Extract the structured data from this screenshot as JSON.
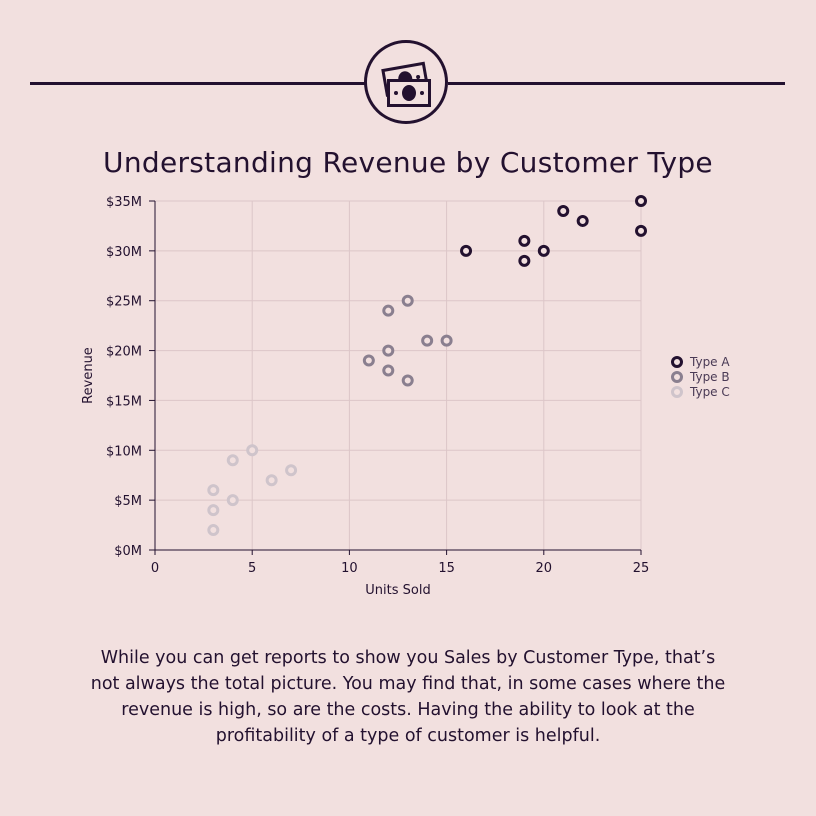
{
  "header": {
    "title": "Understanding Revenue by Customer Type",
    "icon": "money-bills-icon"
  },
  "chart_data": {
    "type": "scatter",
    "title": "Understanding Revenue by Customer Type",
    "xlabel": "Units Sold",
    "ylabel": "Revenue",
    "xlim": [
      0,
      25
    ],
    "ylim": [
      0,
      35
    ],
    "x_ticks": [
      0,
      5,
      10,
      15,
      20,
      25
    ],
    "x_tick_labels": [
      "0",
      "5",
      "10",
      "15",
      "20",
      "25"
    ],
    "y_ticks": [
      0,
      5,
      10,
      15,
      20,
      25,
      30,
      35
    ],
    "y_tick_labels": [
      "$0M",
      "$5M",
      "$10M",
      "$15M",
      "$20M",
      "$25M",
      "$30M",
      "$35M"
    ],
    "grid": true,
    "legend_position": "right",
    "series": [
      {
        "name": "Type A",
        "color": "#23112f",
        "points": [
          [
            16,
            30
          ],
          [
            19,
            31
          ],
          [
            19,
            29
          ],
          [
            20,
            30
          ],
          [
            21,
            34
          ],
          [
            22,
            33
          ],
          [
            25,
            35
          ],
          [
            25,
            32
          ]
        ]
      },
      {
        "name": "Type B",
        "color": "#8a7f8f",
        "points": [
          [
            11,
            19
          ],
          [
            12,
            24
          ],
          [
            12,
            20
          ],
          [
            12,
            18
          ],
          [
            13,
            25
          ],
          [
            13,
            17
          ],
          [
            14,
            21
          ],
          [
            15,
            21
          ]
        ]
      },
      {
        "name": "Type C",
        "color": "#cfc4cb",
        "points": [
          [
            3,
            6
          ],
          [
            3,
            4
          ],
          [
            3,
            2
          ],
          [
            4,
            9
          ],
          [
            4,
            5
          ],
          [
            5,
            10
          ],
          [
            6,
            7
          ],
          [
            7,
            8
          ]
        ]
      }
    ]
  },
  "body": {
    "paragraph": "While you can get reports to show you Sales by Customer Type, that’s not always the total picture. You may find that, in some cases where the revenue is high, so are the costs. Having the ability to look at the profitability of a type of customer is helpful."
  }
}
